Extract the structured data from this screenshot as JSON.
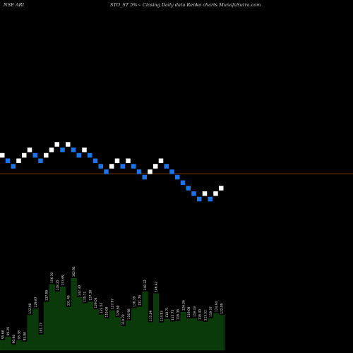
{
  "header": {
    "left": "NSE ARI",
    "middle": "STO_ST 5%~  Closing Daily data  Renko  charts MunafaSutra.com"
  },
  "chart_data": {
    "type": "renko",
    "series": [
      {
        "dir": "up",
        "level": 0
      },
      {
        "dir": "down",
        "level": -1
      },
      {
        "dir": "down",
        "level": -2
      },
      {
        "dir": "up",
        "level": -1
      },
      {
        "dir": "up",
        "level": 0
      },
      {
        "dir": "up",
        "level": 1
      },
      {
        "dir": "down",
        "level": 0
      },
      {
        "dir": "down",
        "level": -1
      },
      {
        "dir": "up",
        "level": 0
      },
      {
        "dir": "up",
        "level": 1
      },
      {
        "dir": "up",
        "level": 2
      },
      {
        "dir": "down",
        "level": 1
      },
      {
        "dir": "up",
        "level": 2
      },
      {
        "dir": "down",
        "level": 1
      },
      {
        "dir": "down",
        "level": 0
      },
      {
        "dir": "up",
        "level": 1
      },
      {
        "dir": "down",
        "level": 0
      },
      {
        "dir": "down",
        "level": -1
      },
      {
        "dir": "down",
        "level": -2
      },
      {
        "dir": "down",
        "level": -3
      },
      {
        "dir": "up",
        "level": -2
      },
      {
        "dir": "up",
        "level": -1
      },
      {
        "dir": "down",
        "level": -2
      },
      {
        "dir": "up",
        "level": -1
      },
      {
        "dir": "down",
        "level": -2
      },
      {
        "dir": "down",
        "level": -3
      },
      {
        "dir": "down",
        "level": -4
      },
      {
        "dir": "up",
        "level": -3
      },
      {
        "dir": "up",
        "level": -2
      },
      {
        "dir": "up",
        "level": -1
      },
      {
        "dir": "down",
        "level": -2
      },
      {
        "dir": "down",
        "level": -3
      },
      {
        "dir": "down",
        "level": -4
      },
      {
        "dir": "down",
        "level": -5
      },
      {
        "dir": "down",
        "level": -6
      },
      {
        "dir": "down",
        "level": -7
      },
      {
        "dir": "down",
        "level": -8
      },
      {
        "dir": "up",
        "level": -7
      },
      {
        "dir": "down",
        "level": -8
      },
      {
        "dir": "up",
        "level": -7
      },
      {
        "dir": "up",
        "level": -6
      }
    ],
    "reference_line_color": "#8a4a0a",
    "up_color": "#ffffff",
    "down_color": "#1e73e8",
    "volume_fill": "#0a3a0a",
    "volume_labels": [
      "95.68",
      "99.29",
      "90.84",
      "95.38",
      "93.88",
      "122.90",
      "129.87",
      "101.77",
      "137.08",
      "156.30",
      "148.25",
      "153.69",
      "131.49",
      "162.92",
      "142.30",
      "135.71",
      "137.30",
      "129.03",
      "123.52",
      "119.08",
      "127.97",
      "120.60",
      "110.78",
      "116.98",
      "130.39",
      "131.78",
      "148.32",
      "115.09",
      "146.42",
      "114.83",
      "118.71",
      "115.75",
      "116.36",
      "126.26",
      "119.09",
      "119.43",
      "116.40",
      "115.52",
      "119.37",
      "124.94",
      "122.89"
    ]
  }
}
